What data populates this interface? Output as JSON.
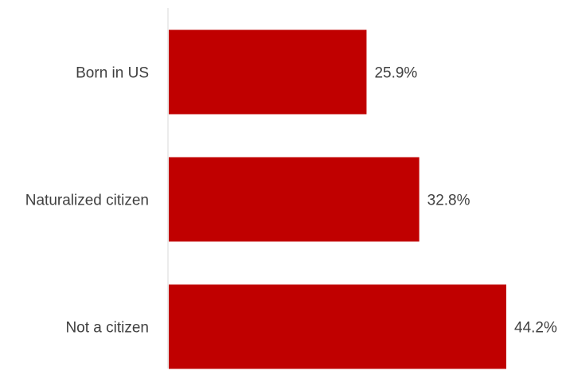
{
  "chart_data": {
    "type": "bar",
    "orientation": "horizontal",
    "categories": [
      "Born in US",
      "Naturalized citizen",
      "Not a citizen"
    ],
    "values": [
      25.9,
      32.8,
      44.2
    ],
    "value_labels": [
      "25.9%",
      "32.8%",
      "44.2%"
    ],
    "unit": "%",
    "xlim": [
      0,
      45
    ],
    "grid": false,
    "legend": "none",
    "colors": {
      "bar": "#c00000",
      "axis": "#d9d9d9",
      "text": "#404040"
    }
  }
}
